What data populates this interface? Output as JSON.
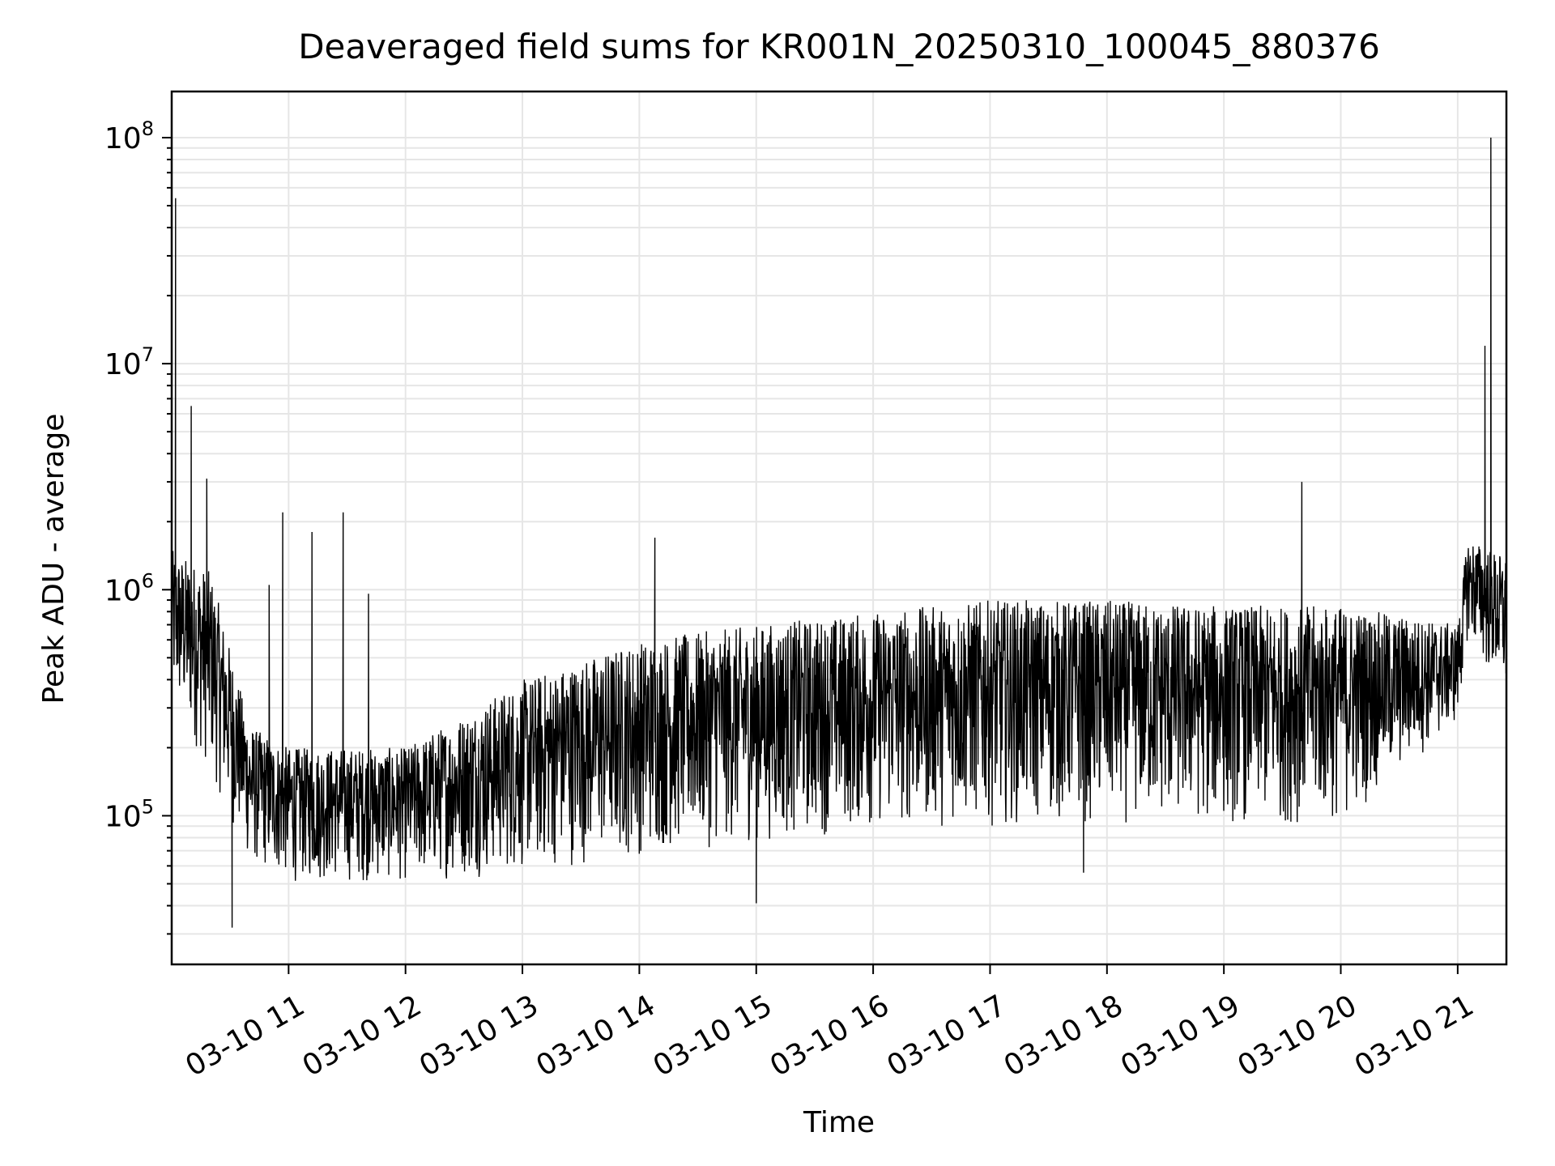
{
  "chart_data": {
    "type": "line",
    "title": "Deaveraged field sums for KR001N_20250310_100045_880376",
    "xlabel": "Time",
    "ylabel": "Peak ADU - average",
    "yscale": "log",
    "grid": true,
    "legend": "none",
    "line_color": "#000000",
    "grid_color": "#e6e6e6",
    "xlim": [
      "2025-03-10 10:00",
      "2025-03-10 21:25"
    ],
    "ylim": [
      22000,
      160000000
    ],
    "x_ticks": [
      {
        "value": "2025-03-10 11:00",
        "label": "03-10 11"
      },
      {
        "value": "2025-03-10 12:00",
        "label": "03-10 12"
      },
      {
        "value": "2025-03-10 13:00",
        "label": "03-10 13"
      },
      {
        "value": "2025-03-10 14:00",
        "label": "03-10 14"
      },
      {
        "value": "2025-03-10 15:00",
        "label": "03-10 15"
      },
      {
        "value": "2025-03-10 16:00",
        "label": "03-10 16"
      },
      {
        "value": "2025-03-10 17:00",
        "label": "03-10 17"
      },
      {
        "value": "2025-03-10 18:00",
        "label": "03-10 18"
      },
      {
        "value": "2025-03-10 19:00",
        "label": "03-10 19"
      },
      {
        "value": "2025-03-10 20:00",
        "label": "03-10 20"
      },
      {
        "value": "2025-03-10 21:00",
        "label": "03-10 21"
      }
    ],
    "y_ticks": [
      {
        "value": 100000,
        "base": "10",
        "exp": "5"
      },
      {
        "value": 1000000,
        "base": "10",
        "exp": "6"
      },
      {
        "value": 10000000,
        "base": "10",
        "exp": "7"
      },
      {
        "value": 100000000,
        "base": "10",
        "exp": "8"
      }
    ],
    "envelope": {
      "description_of_values": "band of the noisy series: x time, lo/hi approx lower and upper values of the dense trace",
      "points": [
        {
          "x": "2025-03-10 10:00",
          "lo": 300000,
          "hi": 1500000
        },
        {
          "x": "2025-03-10 10:20",
          "lo": 150000,
          "hi": 1200000
        },
        {
          "x": "2025-03-10 10:40",
          "lo": 60000,
          "hi": 250000
        },
        {
          "x": "2025-03-10 11:00",
          "lo": 50000,
          "hi": 200000
        },
        {
          "x": "2025-03-10 12:00",
          "lo": 50000,
          "hi": 200000
        },
        {
          "x": "2025-03-10 13:00",
          "lo": 55000,
          "hi": 400000
        },
        {
          "x": "2025-03-10 14:00",
          "lo": 65000,
          "hi": 600000
        },
        {
          "x": "2025-03-10 15:00",
          "lo": 75000,
          "hi": 700000
        },
        {
          "x": "2025-03-10 16:00",
          "lo": 85000,
          "hi": 800000
        },
        {
          "x": "2025-03-10 17:00",
          "lo": 90000,
          "hi": 900000
        },
        {
          "x": "2025-03-10 18:00",
          "lo": 90000,
          "hi": 900000
        },
        {
          "x": "2025-03-10 19:00",
          "lo": 90000,
          "hi": 850000
        },
        {
          "x": "2025-03-10 20:00",
          "lo": 90000,
          "hi": 850000
        },
        {
          "x": "2025-03-10 21:00",
          "lo": 250000,
          "hi": 700000
        },
        {
          "x": "2025-03-10 21:05",
          "lo": 600000,
          "hi": 1700000
        },
        {
          "x": "2025-03-10 21:25",
          "lo": 300000,
          "hi": 1400000
        }
      ]
    },
    "spikes": [
      {
        "x": "2025-03-10 10:02",
        "y": 54000000
      },
      {
        "x": "2025-03-10 10:10",
        "y": 6500000
      },
      {
        "x": "2025-03-10 10:18",
        "y": 3100000
      },
      {
        "x": "2025-03-10 10:31",
        "y": 32000
      },
      {
        "x": "2025-03-10 10:50",
        "y": 1050000
      },
      {
        "x": "2025-03-10 10:57",
        "y": 2200000
      },
      {
        "x": "2025-03-10 11:12",
        "y": 1800000
      },
      {
        "x": "2025-03-10 11:28",
        "y": 2200000
      },
      {
        "x": "2025-03-10 11:41",
        "y": 960000
      },
      {
        "x": "2025-03-10 14:08",
        "y": 1700000
      },
      {
        "x": "2025-03-10 15:00",
        "y": 41000
      },
      {
        "x": "2025-03-10 17:48",
        "y": 56000
      },
      {
        "x": "2025-03-10 19:40",
        "y": 3000000
      },
      {
        "x": "2025-03-10 21:14",
        "y": 12000000
      },
      {
        "x": "2025-03-10 21:17",
        "y": 100000000
      }
    ]
  }
}
